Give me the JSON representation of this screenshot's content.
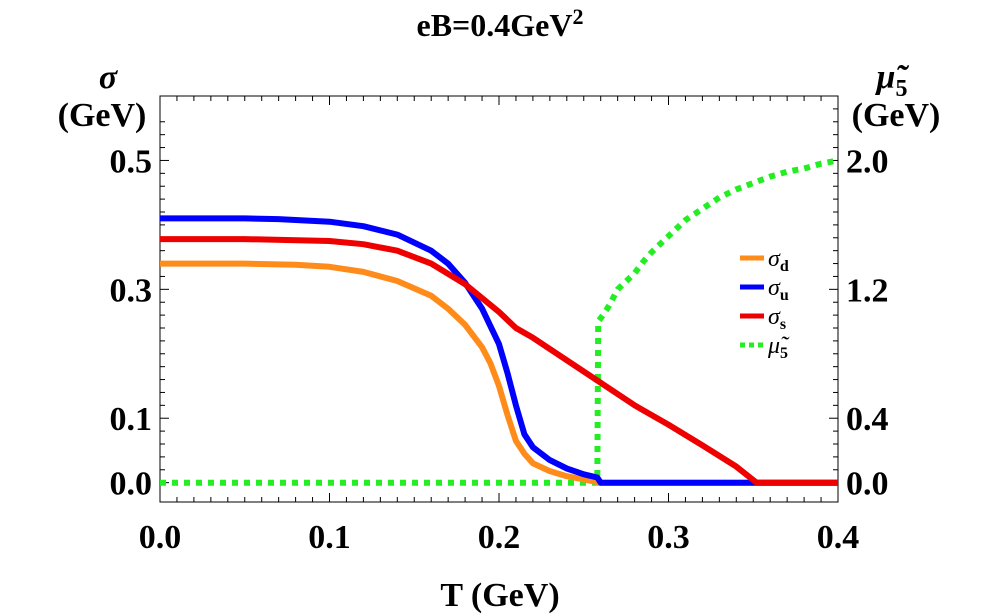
{
  "chart_data": {
    "type": "line",
    "title": "eB=0.4GeV",
    "title_superscript": "2",
    "xlabel": "T (GeV)",
    "ylabel_left": {
      "symbol": "σ",
      "unit": "(GeV)"
    },
    "ylabel_right": {
      "symbol": "μ̃",
      "subscript": "5",
      "unit": "(GeV)"
    },
    "xlim": [
      0.0,
      0.4
    ],
    "ylim_left": [
      -0.03,
      0.6
    ],
    "ylim_right": [
      -0.12,
      2.4
    ],
    "xticks": [
      "0.0",
      "0.1",
      "0.2",
      "0.3",
      "0.4"
    ],
    "xtick_values": [
      0.0,
      0.1,
      0.2,
      0.3,
      0.4
    ],
    "yticks_left": [
      "0.0",
      "0.1",
      "0.3",
      "0.5"
    ],
    "ytick_values_left": [
      0.0,
      0.1,
      0.3,
      0.5
    ],
    "yticks_right": [
      "0.0",
      "0.4",
      "1.2",
      "2.0"
    ],
    "ytick_values_right": [
      0.0,
      0.4,
      1.2,
      2.0
    ],
    "grid": false,
    "legend_position": "right",
    "series": [
      {
        "name": "σd",
        "legend_symbol": "σ",
        "legend_subscript": "d",
        "axis": "left",
        "color": "#ff8c1a",
        "style": "solid",
        "x": [
          0.0,
          0.05,
          0.08,
          0.1,
          0.12,
          0.14,
          0.16,
          0.17,
          0.18,
          0.19,
          0.195,
          0.2,
          0.205,
          0.21,
          0.215,
          0.22,
          0.23,
          0.24,
          0.25,
          0.26,
          0.3,
          0.35,
          0.4
        ],
        "values": [
          0.34,
          0.34,
          0.338,
          0.335,
          0.327,
          0.313,
          0.29,
          0.27,
          0.245,
          0.21,
          0.185,
          0.15,
          0.105,
          0.065,
          0.045,
          0.03,
          0.018,
          0.01,
          0.005,
          0.0,
          0.0,
          0.0,
          0.0
        ]
      },
      {
        "name": "σu",
        "legend_symbol": "σ",
        "legend_subscript": "u",
        "axis": "left",
        "color": "#0000ff",
        "style": "solid",
        "x": [
          0.0,
          0.05,
          0.07,
          0.1,
          0.12,
          0.14,
          0.16,
          0.17,
          0.18,
          0.19,
          0.2,
          0.205,
          0.21,
          0.215,
          0.22,
          0.23,
          0.24,
          0.25,
          0.258,
          0.26,
          0.3,
          0.35,
          0.4
        ],
        "values": [
          0.41,
          0.41,
          0.409,
          0.405,
          0.398,
          0.385,
          0.36,
          0.34,
          0.31,
          0.27,
          0.215,
          0.17,
          0.12,
          0.075,
          0.055,
          0.035,
          0.022,
          0.013,
          0.008,
          0.0,
          0.0,
          0.0,
          0.0
        ]
      },
      {
        "name": "σs",
        "legend_symbol": "σ",
        "legend_subscript": "s",
        "axis": "left",
        "color": "#ee0000",
        "style": "solid",
        "x": [
          0.0,
          0.05,
          0.1,
          0.12,
          0.14,
          0.16,
          0.18,
          0.2,
          0.21,
          0.22,
          0.24,
          0.26,
          0.28,
          0.3,
          0.32,
          0.34,
          0.352,
          0.36,
          0.4
        ],
        "values": [
          0.378,
          0.378,
          0.375,
          0.37,
          0.36,
          0.34,
          0.308,
          0.265,
          0.24,
          0.225,
          0.19,
          0.155,
          0.12,
          0.09,
          0.058,
          0.025,
          0.0,
          0.0,
          0.0
        ]
      },
      {
        "name": "μ̃5",
        "legend_symbol": "μ̃",
        "legend_subscript": "5",
        "axis": "right",
        "color": "#22ee22",
        "style": "dotted",
        "x": [
          0.0,
          0.1,
          0.2,
          0.258,
          0.2585,
          0.262,
          0.265,
          0.27,
          0.275,
          0.28,
          0.285,
          0.29,
          0.3,
          0.31,
          0.32,
          0.33,
          0.34,
          0.35,
          0.36,
          0.37,
          0.38,
          0.39,
          0.4
        ],
        "values": [
          0.0,
          0.0,
          0.0,
          0.0,
          1.0,
          1.05,
          1.1,
          1.2,
          1.25,
          1.3,
          1.37,
          1.43,
          1.53,
          1.63,
          1.7,
          1.77,
          1.82,
          1.86,
          1.9,
          1.93,
          1.95,
          1.98,
          2.0
        ]
      }
    ]
  }
}
